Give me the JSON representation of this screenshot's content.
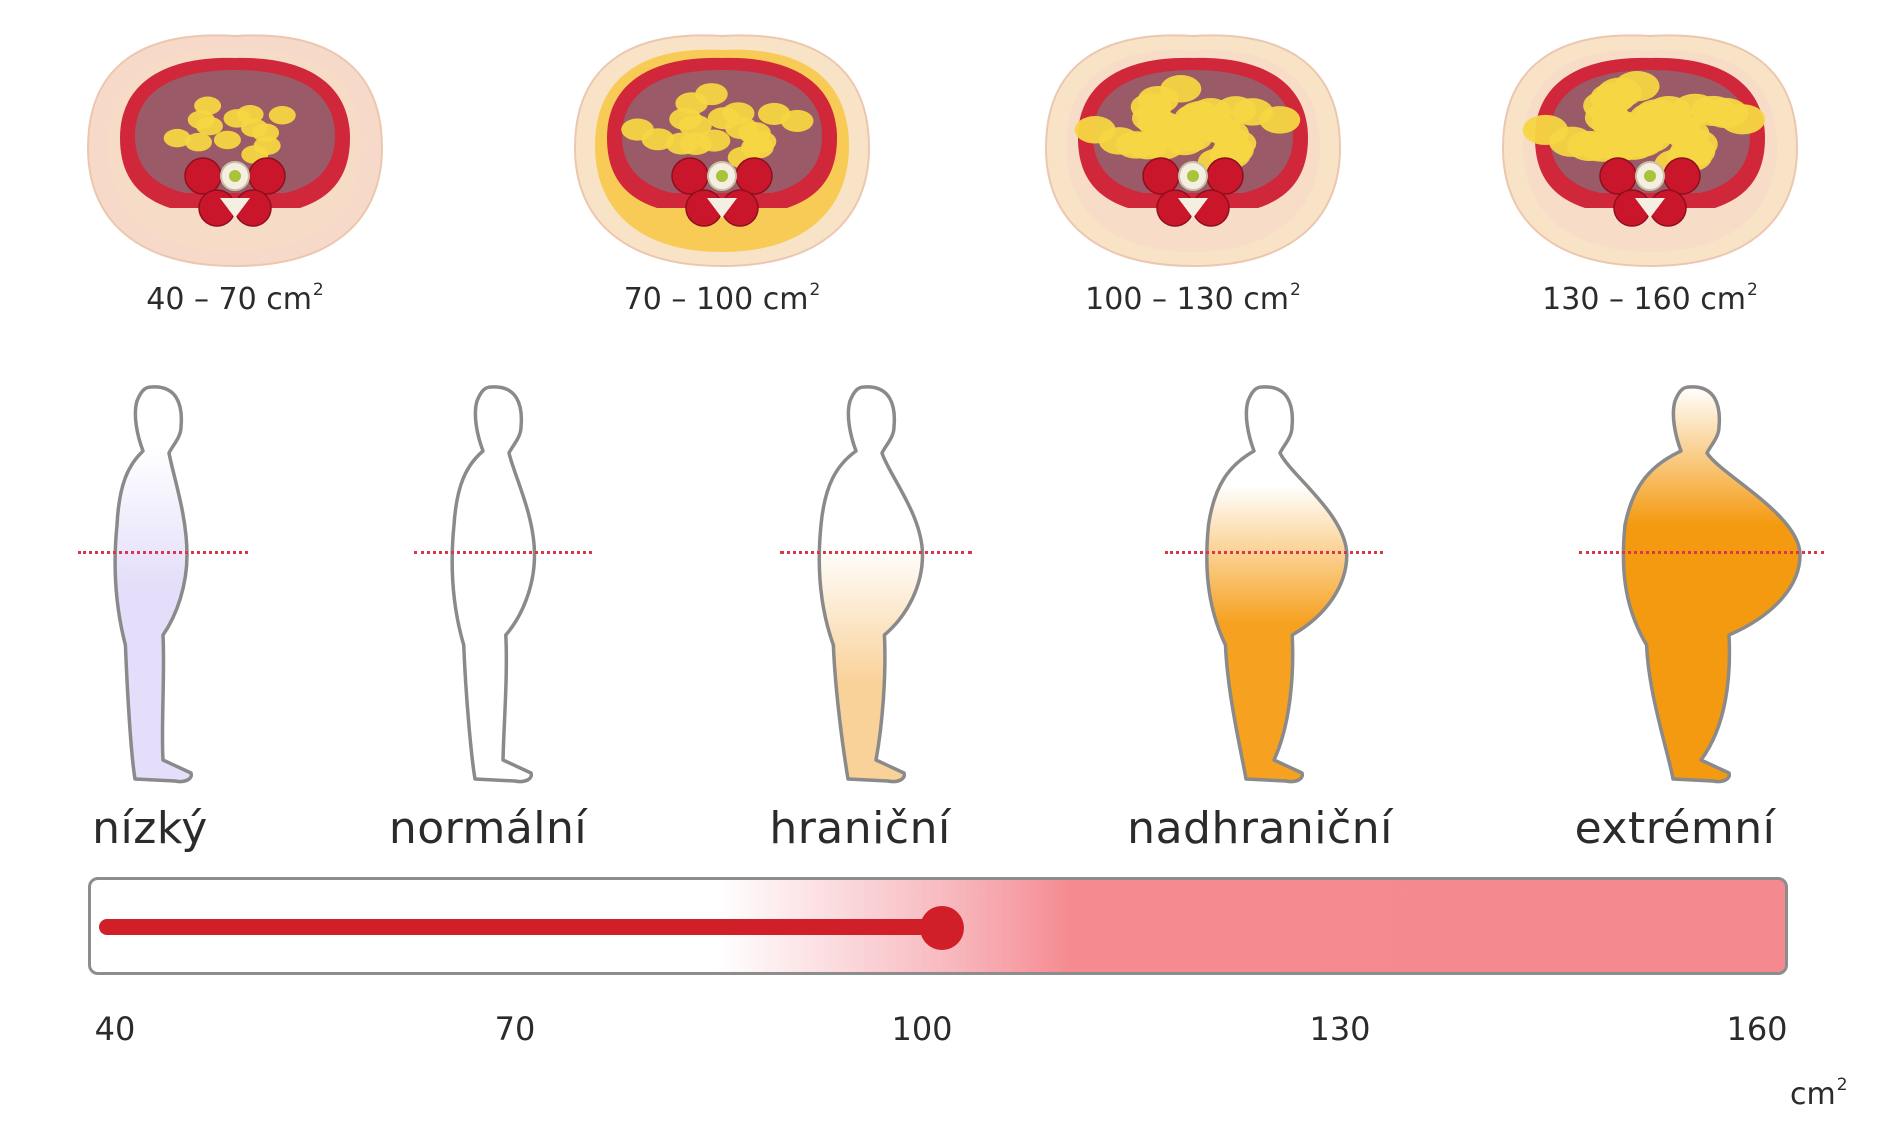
{
  "cross_sections": [
    {
      "label": "40 – 70 cm",
      "unit_sup": "2",
      "fat_level": 0.25
    },
    {
      "label": "70 – 100 cm",
      "unit_sup": "2",
      "fat_level": 0.45
    },
    {
      "label": "100 – 130 cm",
      "unit_sup": "2",
      "fat_level": 0.75
    },
    {
      "label": "130 – 160 cm",
      "unit_sup": "2",
      "fat_level": 0.9
    }
  ],
  "categories": [
    {
      "label": "nízký",
      "fill_color": "#e4defa",
      "belly": 0.0
    },
    {
      "label": "normální",
      "fill_color": "#ffffff",
      "belly": 0.1
    },
    {
      "label": "hraniční",
      "fill_color": "#f9d29a",
      "belly": 0.3
    },
    {
      "label": "nadhraniční",
      "fill_color": "#f6a11f",
      "belly": 0.65
    },
    {
      "label": "extrémní",
      "fill_color": "#f49a10",
      "belly": 1.0
    }
  ],
  "scale": {
    "ticks": [
      "40",
      "70",
      "100",
      "130",
      "160"
    ],
    "unit": "cm",
    "unit_sup": "2",
    "min": 40,
    "max": 160,
    "current_value": 100
  },
  "colors": {
    "accent_red": "#d11f2a",
    "waist_line": "#d63a4a",
    "outline": "#8a8a8a"
  }
}
